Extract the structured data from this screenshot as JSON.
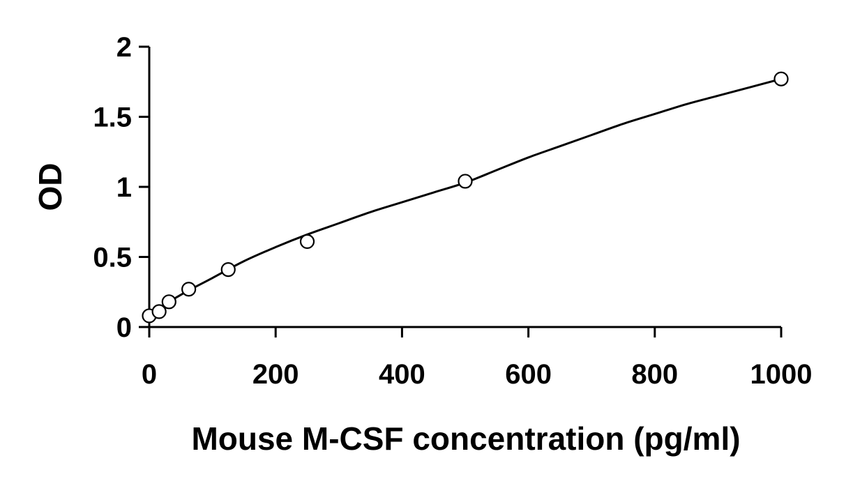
{
  "chart_data": {
    "type": "scatter",
    "title": "",
    "xlabel": "Mouse M-CSF concentration (pg/ml)",
    "ylabel": "OD",
    "xlim": [
      0,
      1000
    ],
    "ylim": [
      0,
      2
    ],
    "xticks": [
      0,
      200,
      400,
      600,
      800,
      1000
    ],
    "yticks": [
      0,
      0.5,
      1,
      1.5,
      2
    ],
    "xtick_labels": [
      "0",
      "200",
      "400",
      "600",
      "800",
      "1000"
    ],
    "ytick_labels": [
      "0",
      "0.5",
      "1",
      "1.5",
      "2"
    ],
    "grid": false,
    "legend": "none",
    "colors": {
      "axis": "#000000",
      "curve": "#000000",
      "marker_edge": "#000000",
      "marker_fill": "#ffffff"
    },
    "series": [
      {
        "marker": "open-circle",
        "x": [
          0,
          15.6,
          31.25,
          62.5,
          125,
          250,
          500,
          1000
        ],
        "y": [
          0.08,
          0.11,
          0.18,
          0.27,
          0.41,
          0.61,
          1.04,
          1.77
        ]
      }
    ],
    "fit_curve": {
      "shape": "smooth-fit",
      "x": [
        0,
        50,
        100,
        150,
        200,
        250,
        300,
        350,
        400,
        450,
        500,
        550,
        600,
        650,
        700,
        750,
        800,
        850,
        900,
        950,
        1000
      ],
      "y": [
        0.09,
        0.23,
        0.35,
        0.47,
        0.57,
        0.66,
        0.74,
        0.82,
        0.89,
        0.96,
        1.03,
        1.12,
        1.21,
        1.29,
        1.37,
        1.45,
        1.52,
        1.59,
        1.65,
        1.71,
        1.77
      ]
    }
  }
}
